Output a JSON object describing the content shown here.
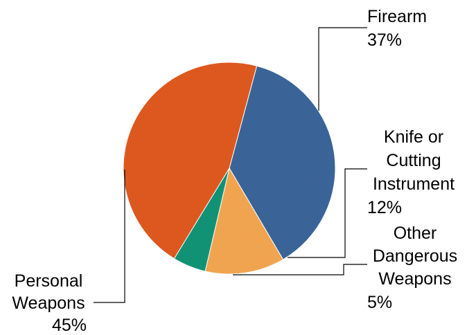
{
  "chart_data": {
    "type": "pie",
    "title": "",
    "slices": [
      {
        "label": "Firearm",
        "value": 37,
        "value_label": "37%",
        "color": "#3a6497"
      },
      {
        "label": "Knife or Cutting Instrument",
        "value": 12,
        "value_label": "12%",
        "color": "#f0a450"
      },
      {
        "label": "Other Dangerous Weapons",
        "value": 5,
        "value_label": "5%",
        "color": "#129274"
      },
      {
        "label": "Personal Weapons",
        "value": 45,
        "value_label": "45%",
        "color": "#dd581e"
      }
    ],
    "start_angle_deg": 15,
    "direction": "clockwise",
    "legend": "none",
    "data_labels": "outside-with-leader-lines"
  }
}
